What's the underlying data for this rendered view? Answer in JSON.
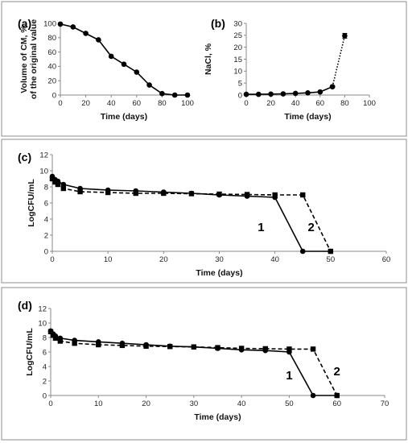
{
  "chart_data": [
    {
      "id": "a",
      "panel_label": "(a)",
      "type": "line",
      "xlabel": "Time (days)",
      "ylabel": [
        "Volume of CM, %",
        "of the original value"
      ],
      "xlim": [
        0,
        100
      ],
      "xticks": [
        0,
        20,
        40,
        60,
        80,
        100
      ],
      "ylim": [
        0,
        100
      ],
      "yticks": [
        0,
        20,
        40,
        60,
        80,
        100
      ],
      "grid": false,
      "series": [
        {
          "x": [
            0,
            10,
            20,
            30,
            40,
            50,
            60,
            70,
            80,
            90,
            100
          ],
          "y": [
            99,
            95,
            86,
            77,
            54,
            43,
            32,
            14,
            2,
            0,
            0
          ],
          "style": "solid",
          "marker": "circle",
          "color": "#000000"
        }
      ]
    },
    {
      "id": "b",
      "panel_label": "(b)",
      "type": "line",
      "xlabel": "Time (days)",
      "ylabel": [
        "NaCl, %"
      ],
      "xlim": [
        0,
        100
      ],
      "xticks": [
        0,
        20,
        40,
        60,
        80,
        100
      ],
      "ylim": [
        0,
        30
      ],
      "yticks": [
        0,
        5,
        10,
        15,
        20,
        25,
        30
      ],
      "grid": false,
      "series": [
        {
          "x": [
            0,
            10,
            20,
            30,
            40,
            50,
            60,
            70
          ],
          "y": [
            0.3,
            0.3,
            0.4,
            0.5,
            0.7,
            0.9,
            1.3,
            3.5
          ],
          "style": "solid",
          "marker": "circle",
          "color": "#000000"
        },
        {
          "x": [
            70,
            80
          ],
          "y": [
            3.5,
            24.8
          ],
          "style": "dotted",
          "marker": "circle",
          "color": "#000000"
        }
      ],
      "error_bars": [
        {
          "x": 80,
          "y": 24.8,
          "err": 1.0
        }
      ]
    },
    {
      "id": "c",
      "panel_label": "(c)",
      "type": "line",
      "xlabel": "Time (days)",
      "ylabel": [
        "LogCFU/mL"
      ],
      "xlim": [
        0,
        60
      ],
      "xticks": [
        0,
        10,
        20,
        30,
        40,
        50,
        60
      ],
      "ylim": [
        0,
        12
      ],
      "yticks": [
        0,
        2,
        4,
        6,
        8,
        10,
        12
      ],
      "grid": false,
      "annotations": [
        {
          "text": "1",
          "x": 37.5,
          "y": 2.5
        },
        {
          "text": "2",
          "x": 46.5,
          "y": 2.5
        }
      ],
      "series": [
        {
          "name": "1",
          "x": [
            0,
            0.5,
            1,
            2,
            5,
            10,
            15,
            20,
            25,
            30,
            35,
            40,
            45,
            50
          ],
          "y": [
            9.3,
            8.9,
            8.7,
            8.3,
            7.8,
            7.6,
            7.5,
            7.35,
            7.2,
            7.0,
            6.85,
            6.7,
            0,
            0
          ],
          "style": "solid",
          "marker": "circle",
          "color": "#000000"
        },
        {
          "name": "2",
          "x": [
            0,
            0.5,
            1,
            2,
            5,
            10,
            15,
            20,
            25,
            30,
            35,
            40,
            45,
            50
          ],
          "y": [
            9.0,
            8.6,
            8.3,
            7.8,
            7.4,
            7.3,
            7.2,
            7.2,
            7.15,
            7.1,
            7.05,
            7.0,
            7.0,
            0
          ],
          "style": "dashed",
          "marker": "square",
          "color": "#000000"
        }
      ]
    },
    {
      "id": "d",
      "panel_label": "(d)",
      "type": "line",
      "xlabel": "Time (days)",
      "ylabel": [
        "LogCFU/mL"
      ],
      "xlim": [
        0,
        70
      ],
      "xticks": [
        0,
        10,
        20,
        30,
        40,
        50,
        60,
        70
      ],
      "ylim": [
        0,
        12
      ],
      "yticks": [
        0,
        2,
        4,
        6,
        8,
        10,
        12
      ],
      "grid": false,
      "annotations": [
        {
          "text": "1",
          "x": 50,
          "y": 2.2
        },
        {
          "text": "2",
          "x": 60,
          "y": 2.8
        }
      ],
      "series": [
        {
          "name": "1",
          "x": [
            0,
            0.5,
            1,
            2,
            5,
            10,
            15,
            20,
            25,
            30,
            35,
            40,
            45,
            50,
            55,
            60
          ],
          "y": [
            8.9,
            8.5,
            8.2,
            7.9,
            7.6,
            7.4,
            7.2,
            7.0,
            6.8,
            6.7,
            6.5,
            6.3,
            6.2,
            6.0,
            0,
            0
          ],
          "style": "solid",
          "marker": "circle",
          "color": "#000000"
        },
        {
          "name": "2",
          "x": [
            0,
            0.5,
            1,
            2,
            5,
            10,
            15,
            20,
            25,
            30,
            35,
            40,
            45,
            50,
            55,
            60
          ],
          "y": [
            8.8,
            8.3,
            7.9,
            7.5,
            7.2,
            7.0,
            6.9,
            6.8,
            6.75,
            6.7,
            6.6,
            6.5,
            6.45,
            6.4,
            6.4,
            0
          ],
          "style": "dashed",
          "marker": "square",
          "color": "#000000"
        }
      ]
    }
  ]
}
